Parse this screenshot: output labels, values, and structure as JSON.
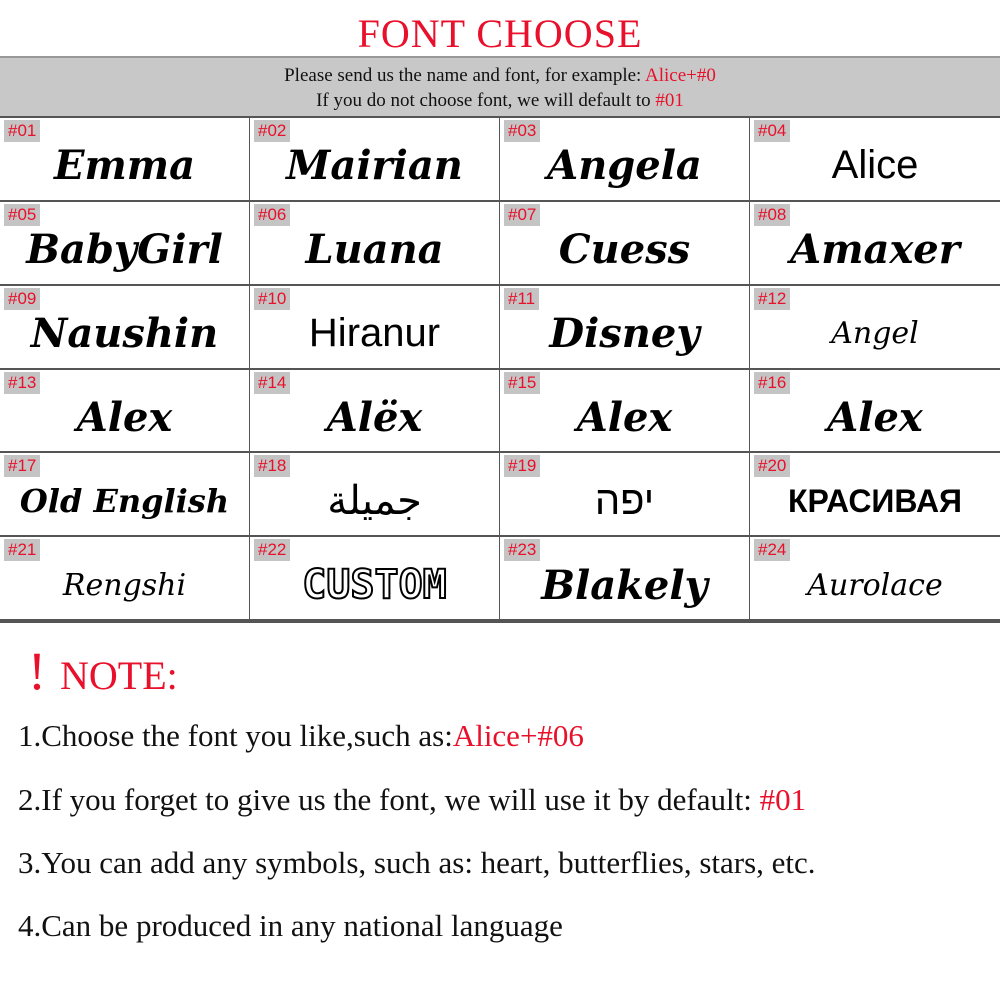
{
  "title": "FONT CHOOSE",
  "banner": {
    "line1": "Please send us the name and font, for example: ",
    "line1_example": "Alice+#0",
    "line2": "If you do not choose  font, we will default to ",
    "line2_default": "#01"
  },
  "fonts": [
    {
      "num": "#01",
      "sample": "Emma"
    },
    {
      "num": "#02",
      "sample": "Mairian"
    },
    {
      "num": "#03",
      "sample": "Angela"
    },
    {
      "num": "#04",
      "sample": "Alice"
    },
    {
      "num": "#05",
      "sample": "BabyGirl"
    },
    {
      "num": "#06",
      "sample": "Luana"
    },
    {
      "num": "#07",
      "sample": "Cuess"
    },
    {
      "num": "#08",
      "sample": "Amaxer"
    },
    {
      "num": "#09",
      "sample": "Naushin"
    },
    {
      "num": "#10",
      "sample": "Hiranur"
    },
    {
      "num": "#11",
      "sample": "Disney"
    },
    {
      "num": "#12",
      "sample": "Angel"
    },
    {
      "num": "#13",
      "sample": "Alex"
    },
    {
      "num": "#14",
      "sample": "Alëx"
    },
    {
      "num": "#15",
      "sample": "Alex"
    },
    {
      "num": "#16",
      "sample": "Alex"
    },
    {
      "num": "#17",
      "sample": "Old English"
    },
    {
      "num": "#18",
      "sample": "جميلة"
    },
    {
      "num": "#19",
      "sample": "יפה"
    },
    {
      "num": "#20",
      "sample": "КРАСИВАЯ"
    },
    {
      "num": "#21",
      "sample": "Rengshi"
    },
    {
      "num": "#22",
      "sample": "CUSTOM"
    },
    {
      "num": "#23",
      "sample": "Blakely"
    },
    {
      "num": "#24",
      "sample": "Aurolace"
    }
  ],
  "note": {
    "mark": "!",
    "heading": "NOTE:",
    "items": [
      {
        "text": "1.Choose the font you like,such as:",
        "highlight": "Alice+#06"
      },
      {
        "text": "2.If you forget to give us the font, we will use it by default: ",
        "highlight": "#01"
      },
      {
        "text": "3.You can add any symbols, such as: heart, butterflies, stars, etc.",
        "highlight": ""
      },
      {
        "text": "4.Can be produced in any national language",
        "highlight": ""
      }
    ]
  },
  "colors": {
    "accent": "#e8102a",
    "banner": "#c8c8c8"
  }
}
